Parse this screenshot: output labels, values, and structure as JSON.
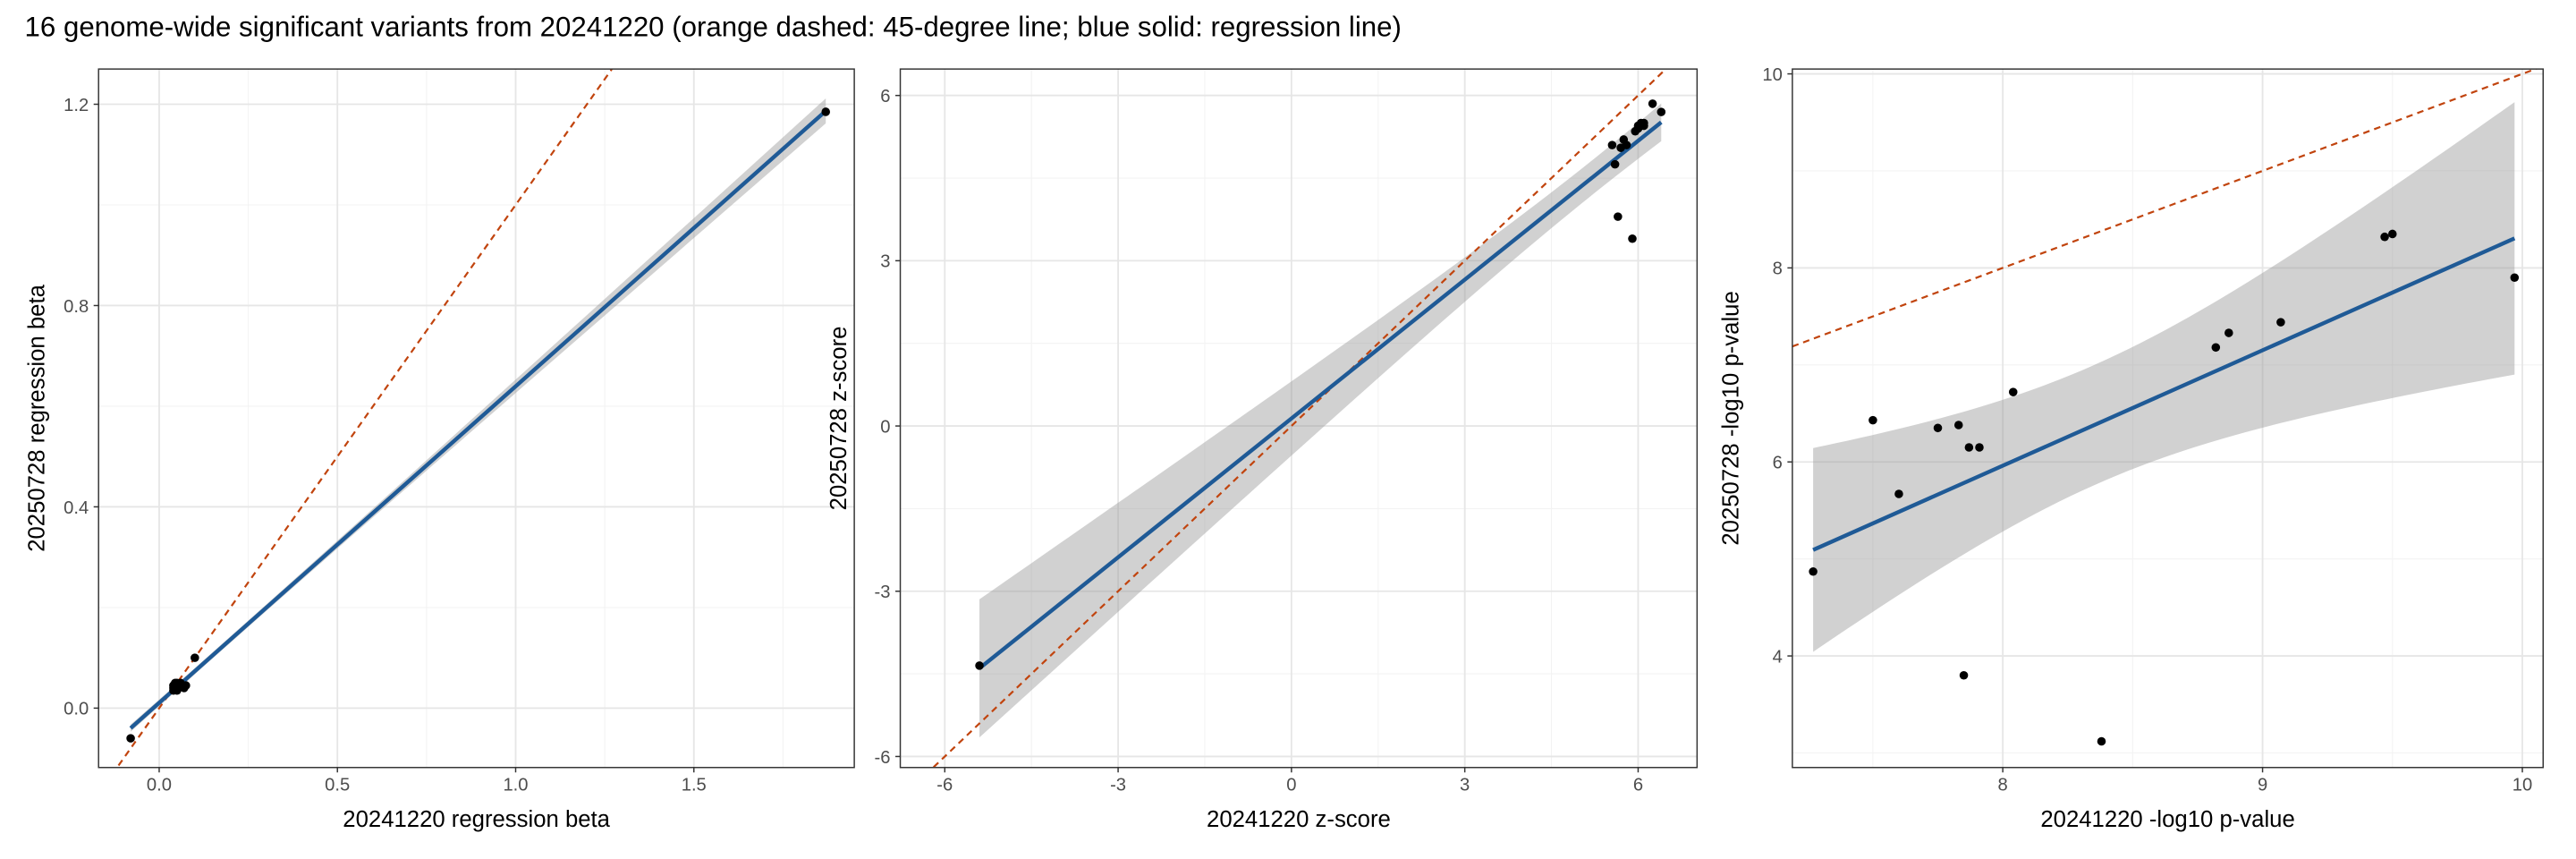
{
  "title": "16 genome-wide significant variants from 20241220 (orange dashed: 45-degree line; blue solid: regression line)",
  "chart_data": [
    {
      "type": "scatter",
      "x_label": "20241220 regression beta",
      "y_label": "20250728 regression beta",
      "color": "#000000",
      "x": [
        -0.08,
        0.04,
        0.045,
        0.05,
        0.045,
        0.04,
        0.05,
        0.06,
        0.07,
        0.075,
        0.05,
        0.055,
        0.04,
        0.06,
        0.1,
        1.87
      ],
      "values": [
        -0.06,
        0.035,
        0.04,
        0.045,
        0.05,
        0.04,
        0.035,
        0.045,
        0.04,
        0.045,
        0.05,
        0.04,
        0.045,
        0.05,
        0.1,
        1.185
      ],
      "xlim": [
        -0.17,
        1.95
      ],
      "ylim": [
        -0.118,
        1.27
      ],
      "xticks": [
        {
          "value": 0,
          "label": "0.0"
        },
        0.5,
        {
          "value": 1,
          "label": "1.0"
        },
        1.5
      ],
      "yticks": [
        {
          "value": 0,
          "label": "0.0"
        },
        0.4,
        0.8,
        1.2
      ],
      "grid": true
    },
    {
      "type": "scatter",
      "x_label": "20241220 z-score",
      "y_label": "20250728 z-score",
      "color": "#000000",
      "x": [
        -5.4,
        5.55,
        5.6,
        5.7,
        5.75,
        5.65,
        5.9,
        6.0,
        6.05,
        6.1,
        6.1,
        6.25,
        6.4,
        5.8,
        5.95,
        6.0
      ],
      "values": [
        -4.35,
        5.1,
        4.75,
        5.05,
        5.2,
        3.8,
        3.4,
        5.4,
        5.5,
        5.45,
        5.5,
        5.85,
        5.7,
        5.1,
        5.35,
        5.45
      ],
      "xlim": [
        -6.77,
        7.02
      ],
      "ylim": [
        -6.2,
        6.48
      ],
      "xticks": [
        -6,
        -3,
        0,
        3,
        6
      ],
      "yticks": [
        -6,
        -3,
        0,
        3,
        6
      ],
      "grid": true
    },
    {
      "type": "scatter",
      "x_label": "20241220 -log10 p-value",
      "y_label": "20250728 -log10 p-value",
      "color": "#000000",
      "x": [
        7.27,
        7.5,
        7.6,
        7.75,
        7.83,
        7.85,
        7.87,
        7.91,
        8.04,
        8.38,
        8.82,
        8.87,
        9.07,
        9.47,
        9.5,
        9.97
      ],
      "values": [
        4.87,
        6.43,
        5.67,
        6.35,
        6.38,
        3.8,
        6.15,
        6.15,
        6.72,
        3.12,
        7.18,
        7.33,
        7.44,
        8.32,
        8.35,
        7.9
      ],
      "xlim": [
        7.19,
        10.08
      ],
      "ylim": [
        2.85,
        10.05
      ],
      "xticks": [
        8,
        9,
        10
      ],
      "yticks": [
        4,
        6,
        8,
        10
      ],
      "grid": true
    }
  ]
}
